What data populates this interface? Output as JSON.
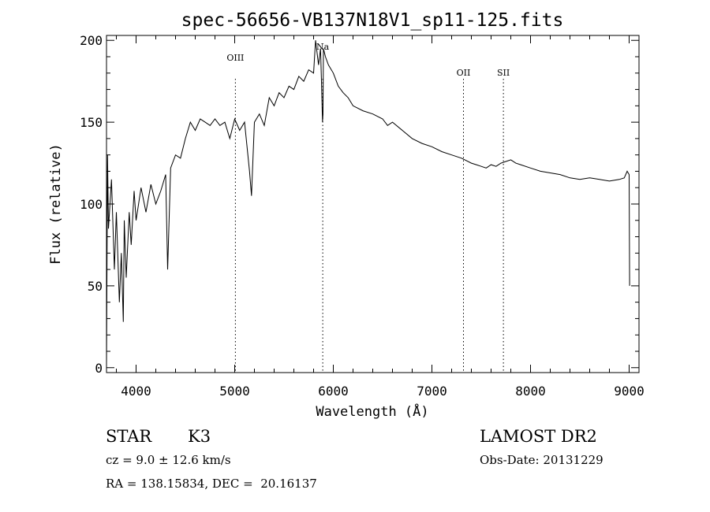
{
  "chart_data": {
    "type": "line",
    "title": "spec-56656-VB137N18V1_sp11-125.fits",
    "xlabel": "Wavelength (Å)",
    "ylabel": "Flux (relative)",
    "xlim": [
      3700,
      9100
    ],
    "ylim": [
      -3,
      203
    ],
    "x_ticks": [
      4000,
      5000,
      6000,
      7000,
      8000,
      9000
    ],
    "y_ticks": [
      0,
      50,
      100,
      150,
      200
    ],
    "grid": false,
    "line_color": "#000000",
    "series": [
      {
        "x": [
          3700,
          3710,
          3720,
          3750,
          3780,
          3800,
          3830,
          3850,
          3870,
          3880,
          3900,
          3930,
          3950,
          3980,
          4000,
          4050,
          4100,
          4150,
          4200,
          4250,
          4300,
          4320,
          4350,
          4400,
          4450,
          4500,
          4550,
          4600,
          4650,
          4700,
          4750,
          4800,
          4850,
          4900,
          4950,
          5000,
          5050,
          5100,
          5150,
          5170,
          5200,
          5250,
          5300,
          5350,
          5400,
          5450,
          5500,
          5550,
          5600,
          5650,
          5700,
          5750,
          5800,
          5820,
          5850,
          5870,
          5880,
          5890,
          5895,
          5900,
          5920,
          5950,
          6000,
          6050,
          6100,
          6150,
          6200,
          6300,
          6400,
          6500,
          6550,
          6600,
          6700,
          6800,
          6900,
          7000,
          7100,
          7200,
          7300,
          7400,
          7450,
          7500,
          7550,
          7600,
          7650,
          7700,
          7750,
          7800,
          7850,
          7900,
          8000,
          8100,
          8200,
          8300,
          8400,
          8500,
          8600,
          8700,
          8800,
          8900,
          8950,
          8980,
          9000,
          9005
        ],
        "y": [
          2,
          130,
          85,
          115,
          60,
          95,
          40,
          70,
          28,
          90,
          55,
          95,
          75,
          108,
          90,
          110,
          95,
          112,
          100,
          108,
          118,
          60,
          122,
          130,
          128,
          140,
          150,
          145,
          152,
          150,
          148,
          152,
          148,
          150,
          140,
          152,
          145,
          150,
          120,
          105,
          150,
          155,
          148,
          165,
          160,
          168,
          165,
          172,
          170,
          178,
          175,
          182,
          180,
          200,
          185,
          195,
          175,
          150,
          155,
          195,
          190,
          185,
          180,
          172,
          168,
          165,
          160,
          157,
          155,
          152,
          148,
          150,
          145,
          140,
          137,
          135,
          132,
          130,
          128,
          125,
          124,
          123,
          122,
          124,
          123,
          125,
          126,
          127,
          125,
          124,
          122,
          120,
          119,
          118,
          116,
          115,
          116,
          115,
          114,
          115,
          116,
          120,
          118,
          50
        ]
      }
    ],
    "line_markers": [
      {
        "label": "OIII",
        "x": 5007
      },
      {
        "label": "Na",
        "x": 5893
      },
      {
        "label": "OII",
        "x": 7320
      },
      {
        "label": "SII",
        "x": 7725
      }
    ]
  },
  "info": {
    "object_class": "STAR",
    "subclass": "K3",
    "survey": "LAMOST DR2",
    "cz": "cz = 9.0 ± 12.6 km/s",
    "obs_date": "Obs-Date: 20131229",
    "coords": "RA = 138.15834, DEC =  20.16137"
  }
}
